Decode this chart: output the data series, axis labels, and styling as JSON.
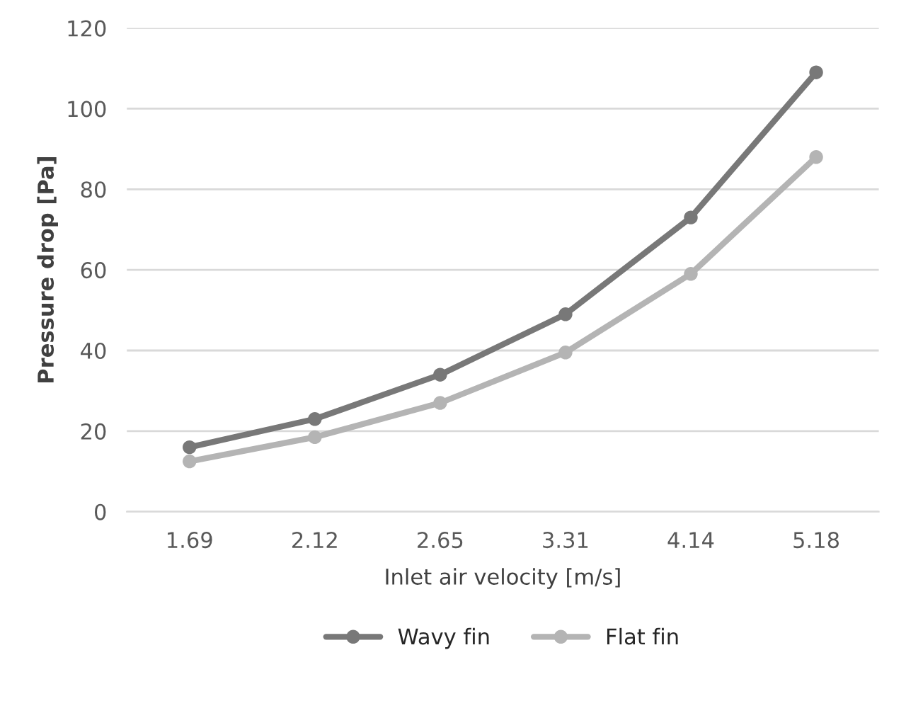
{
  "chart_data": {
    "type": "line",
    "xlabel": "Inlet air velocity [m/s]",
    "ylabel": "Pressure drop [Pa]",
    "categories": [
      "1.69",
      "2.12",
      "2.65",
      "3.31",
      "4.14",
      "5.18"
    ],
    "series": [
      {
        "name": "Wavy fin",
        "color": "#787878",
        "values": [
          16,
          23,
          34,
          49,
          73,
          109
        ]
      },
      {
        "name": "Flat fin",
        "color": "#b4b4b4",
        "values": [
          12.5,
          18.5,
          27,
          39.5,
          59,
          88
        ]
      }
    ],
    "ylim": [
      0,
      120
    ],
    "yticks": [
      0,
      20,
      40,
      60,
      80,
      100,
      120
    ],
    "grid": "y",
    "legend": "bottom",
    "marker": "circle",
    "line_style": "solid"
  }
}
